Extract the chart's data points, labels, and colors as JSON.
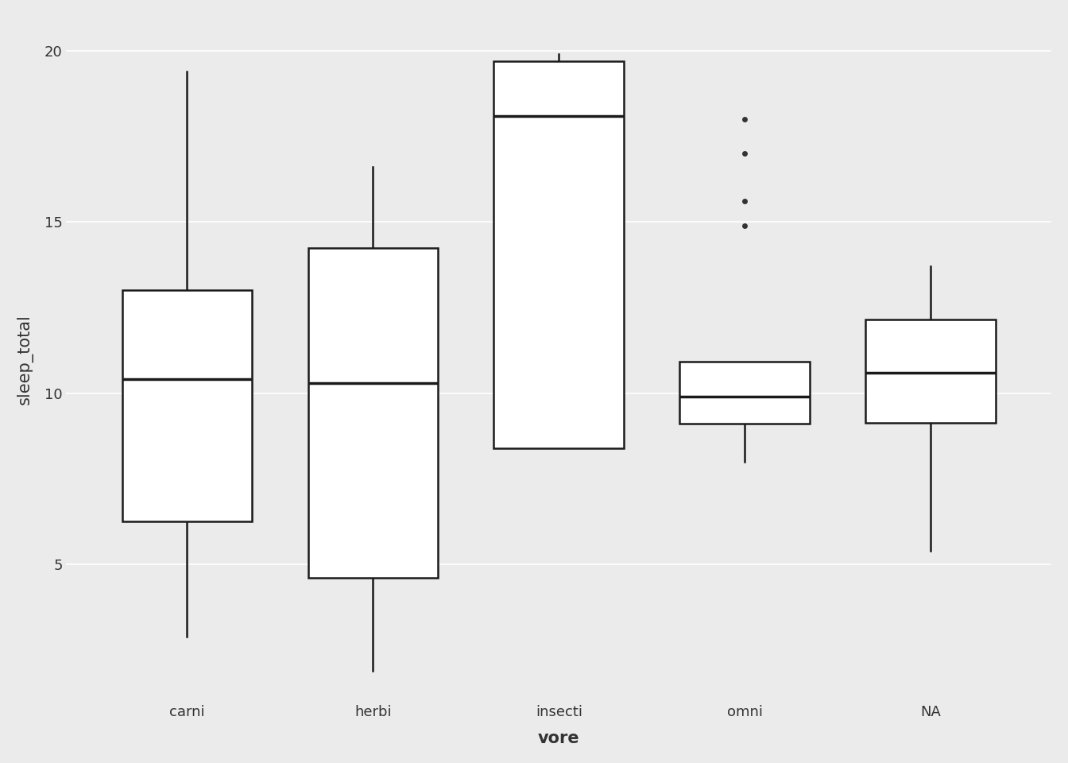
{
  "title": "",
  "xlabel": "vore",
  "ylabel": "sleep_total",
  "background_color": "#EBEBEB",
  "grid_color": "#FFFFFF",
  "box_color": "#FFFFFF",
  "box_edge_color": "#1A1A1A",
  "median_color": "#1A1A1A",
  "whisker_color": "#1A1A1A",
  "flier_color": "#333333",
  "ylim": [
    1.0,
    21.0
  ],
  "yticks": [
    5,
    10,
    15,
    20
  ],
  "categories": [
    "carni",
    "herbi",
    "insecti",
    "omni",
    "NA"
  ],
  "carni": {
    "q1": 6.25,
    "median": 10.4,
    "q3": 13.0,
    "whislo": 2.9,
    "whishi": 19.4,
    "fliers": []
  },
  "herbi": {
    "q1": 4.6,
    "median": 10.3,
    "q3": 14.25,
    "whislo": 1.9,
    "whishi": 16.6,
    "fliers": []
  },
  "insecti": {
    "q1": 8.4,
    "median": 18.1,
    "q3": 19.7,
    "whislo": 8.4,
    "whishi": 19.9,
    "fliers": []
  },
  "omni": {
    "q1": 9.1,
    "median": 9.9,
    "q3": 10.925,
    "whislo": 8.0,
    "whishi": 10.925,
    "fliers": [
      14.9,
      15.6,
      17.0,
      18.0
    ]
  },
  "NA": {
    "q1": 9.125,
    "median": 10.6,
    "q3": 12.15,
    "whislo": 5.4,
    "whishi": 13.7,
    "fliers": []
  },
  "box_width": 0.7,
  "linewidth": 1.8,
  "median_linewidth": 2.5,
  "axis_label_fontsize": 15,
  "tick_fontsize": 13
}
